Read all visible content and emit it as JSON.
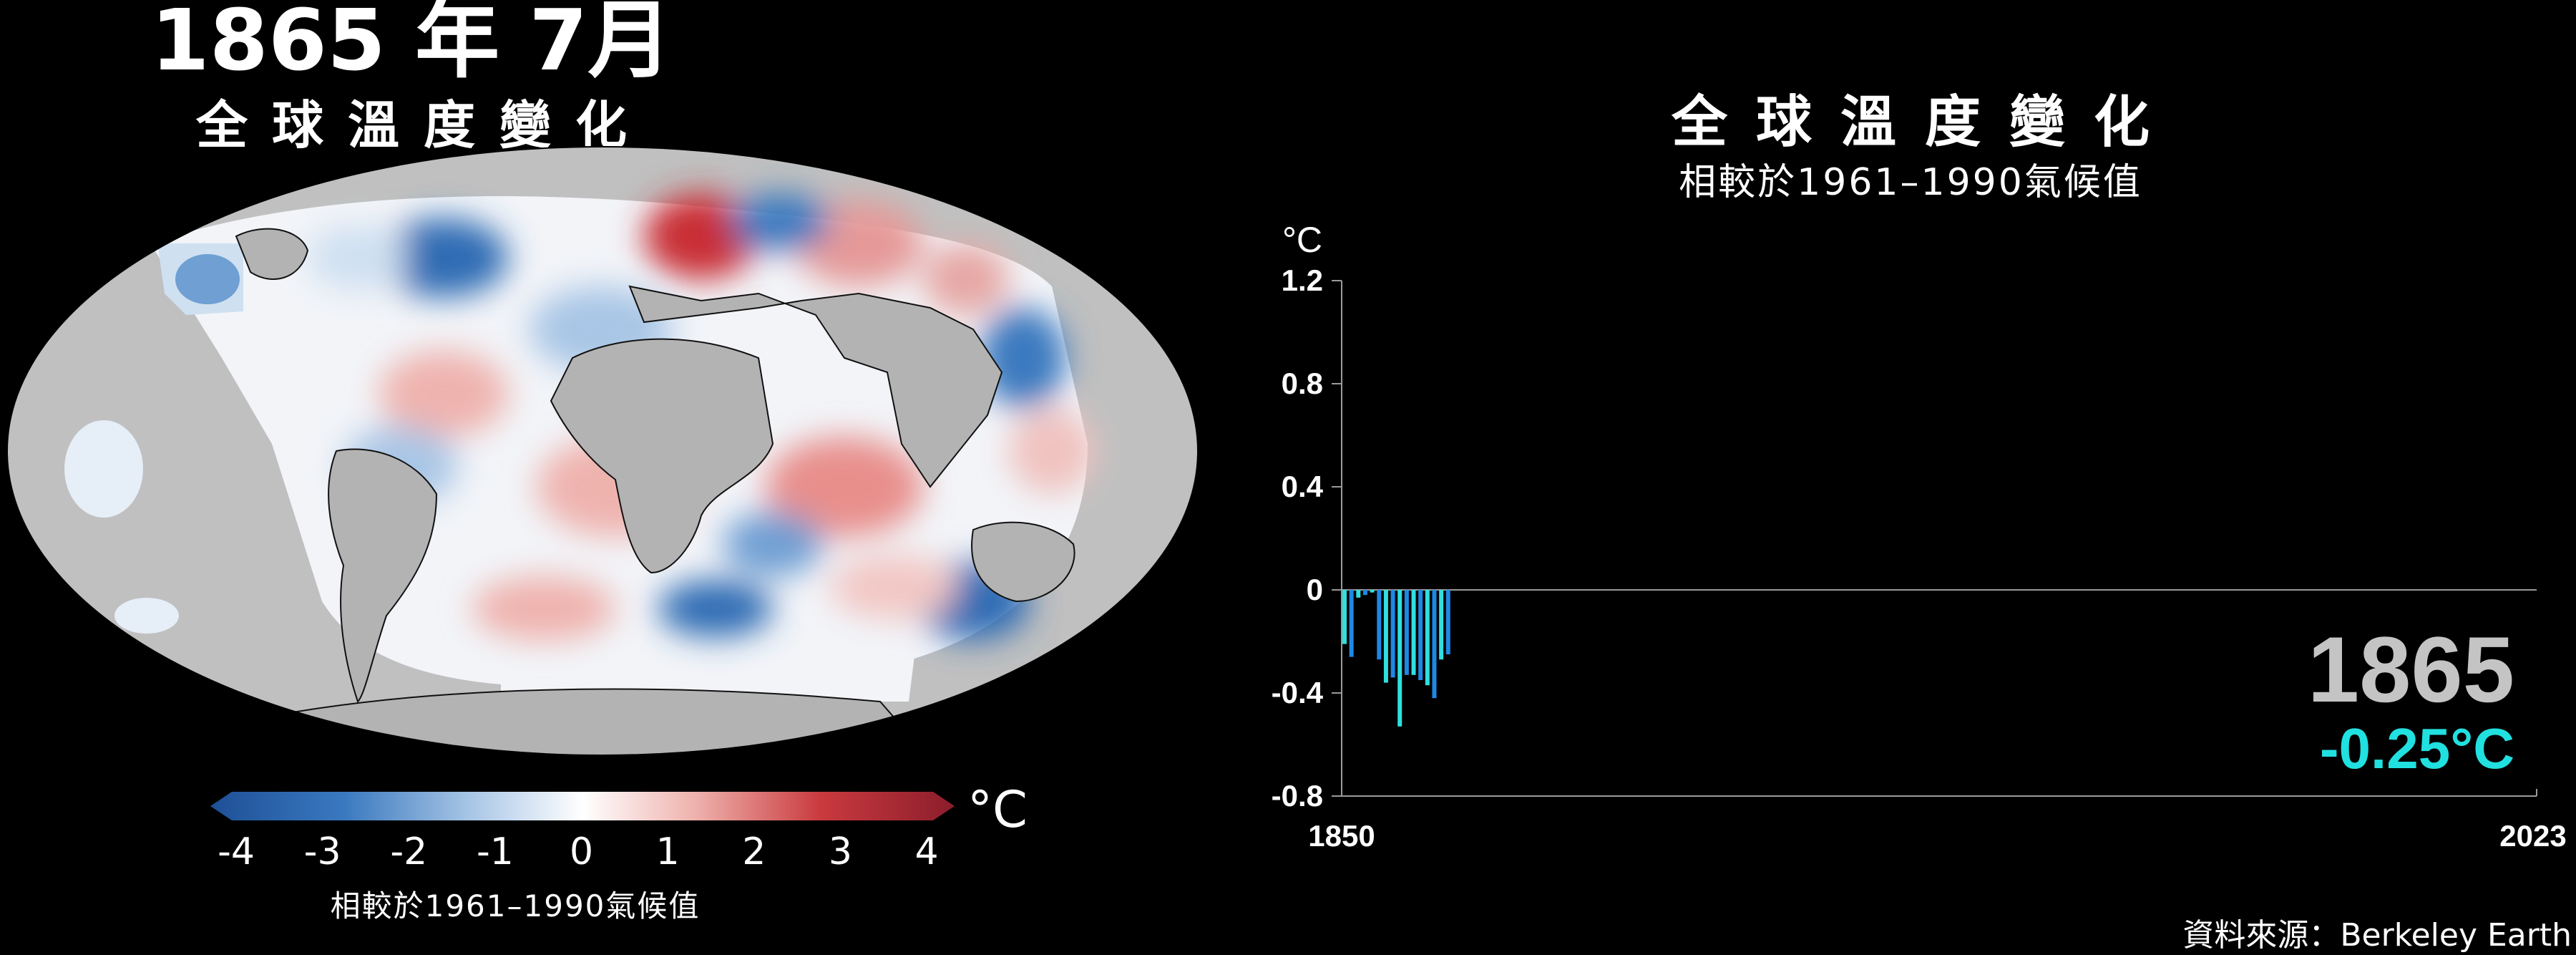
{
  "map": {
    "title": "1865 年 7月",
    "subtitle": "全球溫度變化",
    "legend": {
      "unit": "°C",
      "ticks": [
        "-4",
        "-3",
        "-2",
        "-1",
        "0",
        "1",
        "2",
        "3",
        "4"
      ],
      "caption": "相較於1961–1990氣候值",
      "cold_color": "#1e4f96",
      "neutral_color": "#ffffff",
      "warm_color": "#8c1d2c"
    }
  },
  "chart": {
    "title": "全球溫度變化",
    "subtitle": "相較於1961–1990氣候值",
    "readout": {
      "year": "1865",
      "value": "-0.25°C"
    }
  },
  "chart_data": {
    "type": "bar",
    "title": "全球溫度變化",
    "subtitle": "相較於1961–1990氣候值",
    "ylabel": "°C",
    "xlabel": "",
    "xlim": [
      1850,
      2023
    ],
    "x_tick_labels": [
      "1850",
      "2023"
    ],
    "ylim": [
      -0.8,
      1.2
    ],
    "y_tick_labels": [
      "1.2",
      "0.8",
      "0.4",
      "0",
      "-0.4",
      "-0.8"
    ],
    "y_ticks": [
      1.2,
      0.8,
      0.4,
      0,
      -0.4,
      -0.8
    ],
    "grid": false,
    "bar_colors": {
      "cold_light": "#2fe0e0",
      "cold_dark": "#1e88e5"
    },
    "x": [
      1850,
      1851,
      1852,
      1853,
      1854,
      1855,
      1856,
      1857,
      1858,
      1859,
      1860,
      1861,
      1862,
      1863,
      1864,
      1865
    ],
    "values": [
      -0.21,
      -0.26,
      -0.03,
      -0.02,
      -0.01,
      -0.27,
      -0.36,
      -0.34,
      -0.53,
      -0.33,
      -0.33,
      -0.35,
      -0.37,
      -0.42,
      -0.27,
      -0.25
    ]
  },
  "attribution": "資料來源：Berkeley Earth"
}
